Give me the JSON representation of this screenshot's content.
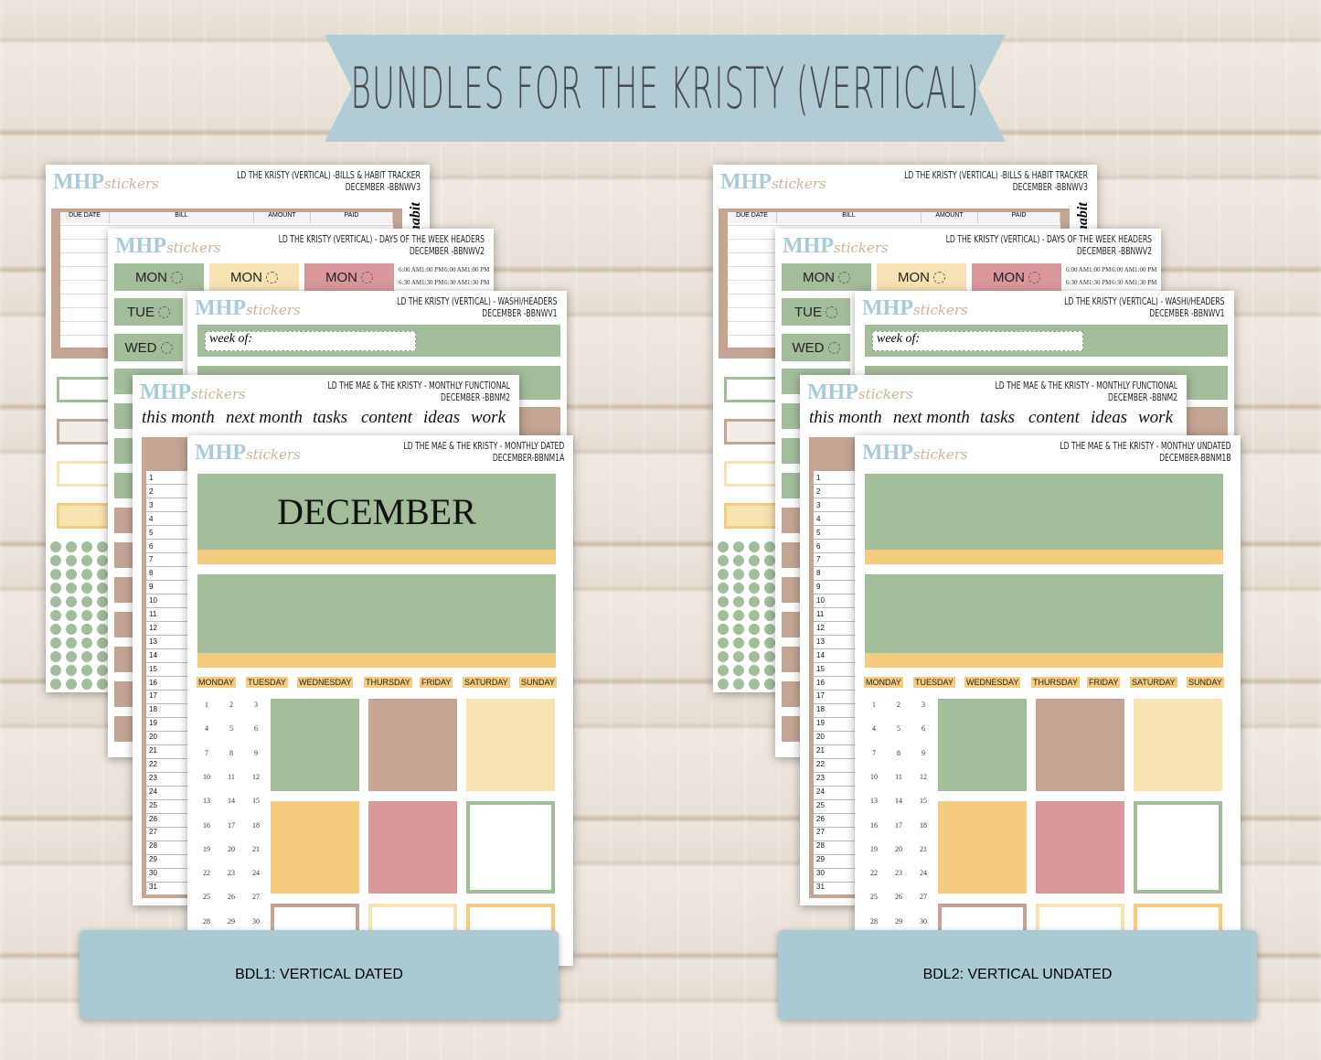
{
  "banner": {
    "title": "BUNDLES FOR THE KRISTY (VERTICAL)"
  },
  "colors": {
    "green": "#a3bc9a",
    "brown": "#c4a594",
    "yellow": "#f5cc7e",
    "light_yellow": "#f7e2b2",
    "pink": "#d9979c",
    "label_blue": "#a9c9d3",
    "text": "#4a4a4a"
  },
  "logo": {
    "brand": "MHP",
    "script": "stickers"
  },
  "bills_sheet": {
    "title": "LD THE KRISTY (VERTICAL) -BILLS & HABIT TRACKER",
    "code": "DECEMBER -BBNWV3",
    "columns": [
      "DUE DATE",
      "BILL",
      "AMOUNT",
      "PAID"
    ],
    "side_word": "habit"
  },
  "days_sheet": {
    "title": "LD THE KRISTY (VERTICAL) - DAYS OF THE WEEK HEADERS",
    "code": "DECEMBER -BBNWV2",
    "chips": [
      "MON",
      "MON",
      "MON"
    ],
    "column_days": [
      "TUE",
      "WED"
    ],
    "times": [
      [
        "6:00 AM",
        "1:00 PM",
        "6:00 AM",
        "1:00 PM"
      ],
      [
        "6:30 AM",
        "1:30 PM",
        "6:30 AM",
        "1:30 PM"
      ]
    ]
  },
  "washi_sheet": {
    "title": "LD THE KRISTY (VERTICAL) - WASHI/HEADERS",
    "code": "DECEMBER -BBNWV1",
    "field": "week of:"
  },
  "functional_sheet": {
    "title": "LD THE MAE & THE KRISTY - MONTHLY FUNCTIONAL",
    "code": "DECEMBER -BBNM2",
    "words": [
      "this month",
      "next month",
      "tasks",
      "content",
      "ideas",
      "work"
    ],
    "numbers": [
      "1",
      "2",
      "3",
      "4",
      "5",
      "6",
      "7",
      "8",
      "9",
      "10",
      "11",
      "12",
      "13",
      "14",
      "15",
      "16",
      "17",
      "18",
      "19",
      "20",
      "21",
      "22",
      "23",
      "24",
      "25",
      "26",
      "27",
      "28",
      "29",
      "30",
      "31"
    ]
  },
  "monthly_sheet": {
    "weekdays": [
      "MONDAY",
      "TUESDAY",
      "WEDNESDAY",
      "THURSDAY",
      "FRIDAY",
      "SATURDAY",
      "SUNDAY"
    ],
    "dates": [
      "1",
      "2",
      "3",
      "4",
      "5",
      "6",
      "7",
      "8",
      "9",
      "10",
      "11",
      "12",
      "13",
      "14",
      "15",
      "16",
      "17",
      "18",
      "19",
      "20",
      "21",
      "22",
      "23",
      "24",
      "25",
      "26",
      "27",
      "28",
      "29",
      "30"
    ]
  },
  "bundles": [
    {
      "label": "BDL1: VERTICAL DATED",
      "monthly_title": "LD THE MAE & THE KRISTY - MONTHLY DATED",
      "monthly_code": "DECEMBER-BBNM1A",
      "month_name": "DECEMBER"
    },
    {
      "label": "BDL2: VERTICAL UNDATED",
      "monthly_title": "LD THE MAE & THE KRISTY - MONTHLY UNDATED",
      "monthly_code": "DECEMBER-BBNM1B",
      "month_name": ""
    }
  ]
}
